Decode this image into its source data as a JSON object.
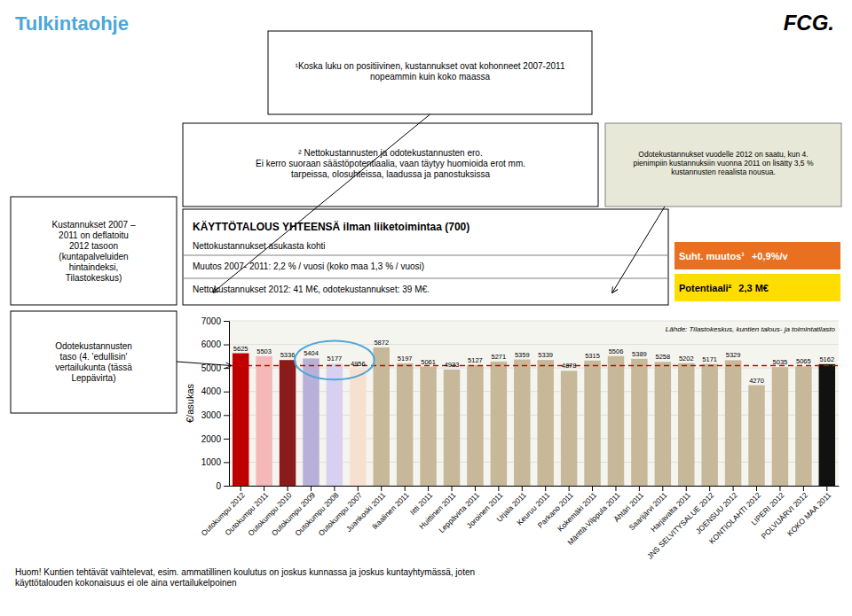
{
  "chart_data": {
    "type": "bar",
    "title": "KÄYTTÖTALOUS YHTEENSÄ ilman liiketoimintaa (700)",
    "subtitle": [
      "Nettokustannukset  asukasta kohti",
      "Muutos 2007- 2011: 2,2 % / vuosi (koko maa 1,3 % / vuosi)",
      "Nettokustannukset 2012: 41 M€, odotekustannukset: 39 M€."
    ],
    "ylabel": "€/asukas",
    "categories": [
      "Outokumpu 2012",
      "Outokumpu 2011",
      "Outokumpu 2010",
      "Outokumpu 2009",
      "Outokumpu 2008",
      "Outokumpu 2007",
      "Juankoski 2011",
      "Ikaalinen 2011",
      "Iitti 2011",
      "Huittinen 2011",
      "Leppävirta 2011",
      "Joroinen 2011",
      "Urjala 2011",
      "Keuruu 2011",
      "Parkano 2011",
      "Kokemäki 2011",
      "Mänttä-Vilppula 2011",
      "Ähtäri 2011",
      "Saarijärvi 2011",
      "Harjavalta 2011",
      "JNS SELVITYSALUE 2012",
      "JOENSUU 2012",
      "KONTIOLAHTI 2012",
      "LIPERI 2012",
      "POLVIJÄRVI 2012",
      "KOKO MAA 2011"
    ],
    "values": [
      5625,
      5503,
      5336,
      5404,
      5177,
      4956,
      5872,
      5197,
      5061,
      4933,
      5127,
      5271,
      5359,
      5339,
      4878,
      5315,
      5506,
      5389,
      5258,
      5202,
      5171,
      5329,
      4270,
      5035,
      5065,
      5162
    ],
    "colors": [
      "#c00000",
      "#f4b8b8",
      "#8b1a1a",
      "#b8b0d8",
      "#d8d0f0",
      "#f8e0d0",
      "#c8b89a",
      "#c8b89a",
      "#c8b89a",
      "#c8b89a",
      "#c8b89a",
      "#c8b89a",
      "#c8b89a",
      "#c8b89a",
      "#c8b89a",
      "#c8b89a",
      "#c8b89a",
      "#c8b89a",
      "#c8b89a",
      "#c8b89a",
      "#c8b89a",
      "#c8b89a",
      "#c8b89a",
      "#c8b89a",
      "#c8b89a",
      "#111111"
    ],
    "reference_line": 5100,
    "ylim": [
      0,
      7000
    ],
    "yticks": [
      0,
      1000,
      2000,
      3000,
      4000,
      5000,
      6000,
      7000
    ],
    "grid": true,
    "data_labels": true,
    "annotations": [
      "Tulkintaohje",
      "FCG.",
      "¹Koska luku on positiivinen, kustannukset ovat kohonneet 2007-2011\nnopeammin kuin koko maassa",
      "² Nettokustannusten ja odotekustannusten ero.\nEi kerro suoraan säästöpotentiaalia, vaan täytyy huomioida erot mm.\ntarpeissa, olosuhteissa, laadussa ja panostuksissa",
      "Kustannukset 2007 –\n2011 on deflatoitu\n2012 tasoon\n(kuntapalveluiden\nhintaindeksi,\nTilastokeskus)",
      "Odotekustannusten\ntaso (4. 'edullisin'\nvertailukunta (tässä\nLeppävirta)",
      "Suht. muutos¹",
      "+0,9%/v",
      "Potentiaali²",
      "2,3 M€",
      "Odotekustannukset vuodelle 2012 on saatu, kun 4.\npienimpiin kustannuksiin vuonna 2011 on lisätty 3,5 %\nkustannusten reaalista nousua.",
      "Lähde: Tilastokeskus, kuntien talous- ja toimintatilasto",
      "Huom! Kuntien tehtävät vaihtelevat, esim.  ammatillinen koulutus on joskus kunnassa ja joskus kuntayhtymässä, joten\nkäyttötalouden kokonaisuus ei ole aina vertailukelpoinen"
    ]
  }
}
